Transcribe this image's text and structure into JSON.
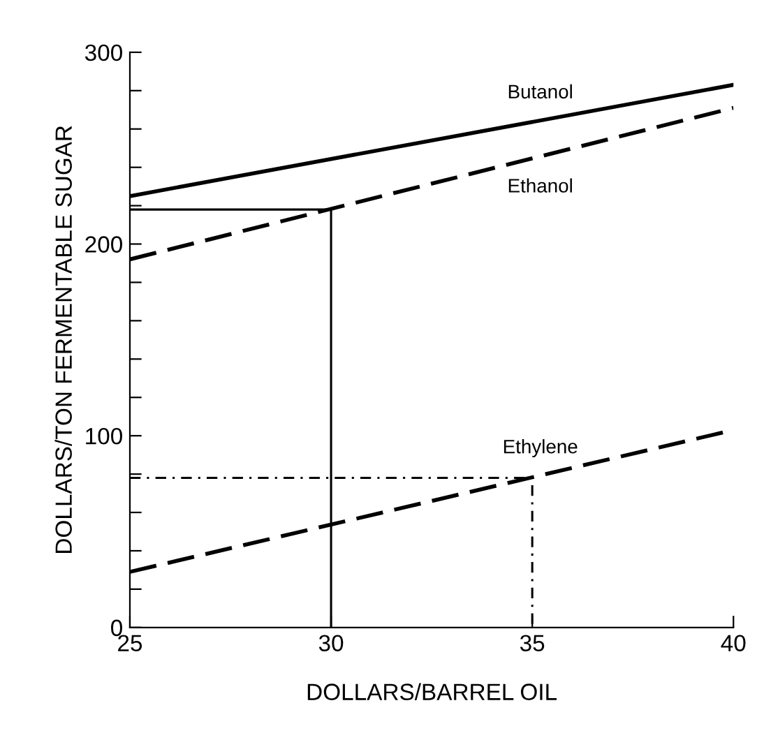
{
  "chart_data": {
    "type": "line",
    "xlabel": "DOLLARS/BARREL OIL",
    "ylabel": "DOLLARS/TON FERMENTABLE SUGAR",
    "xlim": [
      25,
      40
    ],
    "ylim": [
      0,
      300
    ],
    "xticks": [
      25,
      30,
      35,
      40
    ],
    "yticks": [
      0,
      {
        "value": 20,
        "label": null
      },
      {
        "value": 40,
        "label": null
      },
      {
        "value": 60,
        "label": null
      },
      {
        "value": 80,
        "label": null
      },
      100,
      {
        "value": 120,
        "label": null
      },
      {
        "value": 140,
        "label": null
      },
      {
        "value": 160,
        "label": null
      },
      {
        "value": 180,
        "label": null
      },
      200,
      {
        "value": 220,
        "label": null
      },
      {
        "value": 240,
        "label": null
      },
      {
        "value": 260,
        "label": null
      },
      {
        "value": 280,
        "label": null
      },
      300
    ],
    "grid": false,
    "legend": false,
    "marker": "none",
    "series": [
      {
        "name": "Butanol",
        "color": "#000000",
        "line_style": "solid",
        "x": [
          25,
          40
        ],
        "values": [
          225,
          283
        ]
      },
      {
        "name": "Ethanol",
        "color": "#000000",
        "line_style": "dashed",
        "x": [
          25,
          40
        ],
        "values": [
          192,
          271
        ]
      },
      {
        "name": "Ethylene",
        "color": "#000000",
        "line_style": "dashed",
        "x": [
          25,
          40
        ],
        "values": [
          29,
          103
        ]
      },
      {
        "color": "#000000",
        "line_style": "solid",
        "x": [
          25,
          30,
          30
        ],
        "values": [
          218,
          218,
          0
        ]
      },
      {
        "color": "#000000",
        "line_style": "dotted",
        "x": [
          25,
          35,
          35
        ],
        "values": [
          78,
          78,
          0
        ]
      }
    ]
  }
}
